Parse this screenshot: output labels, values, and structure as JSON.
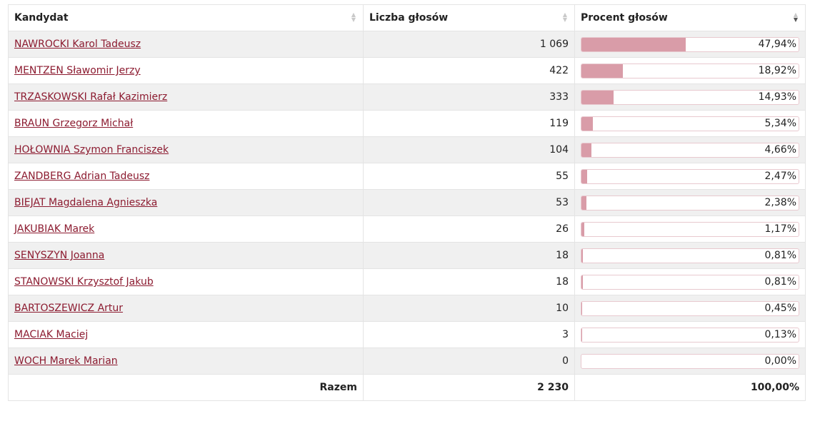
{
  "table": {
    "headers": {
      "candidate": "Kandydat",
      "votes": "Liczba głosów",
      "percent": "Procent głosów"
    },
    "sort_icons": {
      "candidate": "sort-icon",
      "votes": "sort-icon",
      "percent": "sort-desc-icon"
    },
    "rows": [
      {
        "name": "NAWROCKI Karol Tadeusz",
        "votes": "1 069",
        "percent": "47,94%",
        "share": 47.94
      },
      {
        "name": "MENTZEN Sławomir Jerzy",
        "votes": "422",
        "percent": "18,92%",
        "share": 18.92
      },
      {
        "name": "TRZASKOWSKI Rafał Kazimierz",
        "votes": "333",
        "percent": "14,93%",
        "share": 14.93
      },
      {
        "name": "BRAUN Grzegorz Michał",
        "votes": "119",
        "percent": "5,34%",
        "share": 5.34
      },
      {
        "name": "HOŁOWNIA Szymon Franciszek",
        "votes": "104",
        "percent": "4,66%",
        "share": 4.66
      },
      {
        "name": "ZANDBERG Adrian Tadeusz",
        "votes": "55",
        "percent": "2,47%",
        "share": 2.47
      },
      {
        "name": "BIEJAT Magdalena Agnieszka",
        "votes": "53",
        "percent": "2,38%",
        "share": 2.38
      },
      {
        "name": "JAKUBIAK Marek",
        "votes": "26",
        "percent": "1,17%",
        "share": 1.17
      },
      {
        "name": "SENYSZYN Joanna",
        "votes": "18",
        "percent": "0,81%",
        "share": 0.81
      },
      {
        "name": "STANOWSKI Krzysztof Jakub",
        "votes": "18",
        "percent": "0,81%",
        "share": 0.81
      },
      {
        "name": "BARTOSZEWICZ Artur",
        "votes": "10",
        "percent": "0,45%",
        "share": 0.45
      },
      {
        "name": "MACIAK Maciej",
        "votes": "3",
        "percent": "0,13%",
        "share": 0.13
      },
      {
        "name": "WOCH Marek Marian",
        "votes": "0",
        "percent": "0,00%",
        "share": 0.0
      }
    ],
    "total": {
      "label": "Razem",
      "votes": "2 230",
      "percent": "100,00%"
    }
  },
  "colors": {
    "link": "#8c1b30",
    "bar_fill": "#d99ca8",
    "bar_border": "#e8c9cf",
    "row_stripe": "#f0f0f0"
  }
}
